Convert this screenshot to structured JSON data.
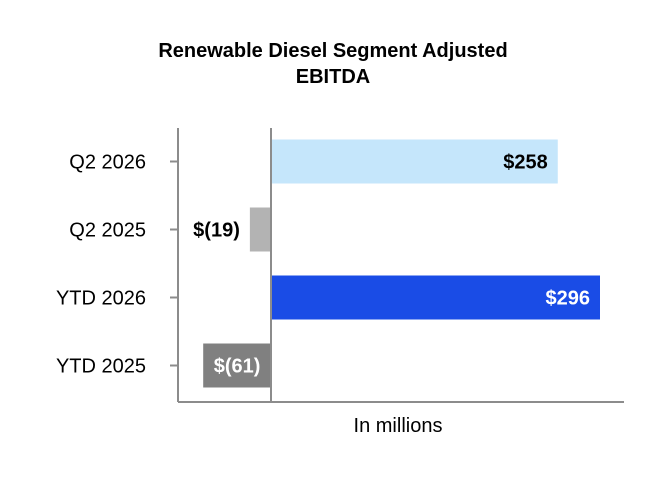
{
  "chart_data": {
    "type": "bar",
    "orientation": "horizontal",
    "title_lines": [
      "Renewable Diesel Segment Adjusted",
      "EBITDA"
    ],
    "xlabel": "In millions",
    "ylabel": "",
    "categories": [
      "Q2 2026",
      "Q2 2025",
      "YTD 2026",
      "YTD 2025"
    ],
    "values": [
      258,
      -19,
      296,
      -61
    ],
    "data_labels": [
      "$258",
      "$(19)",
      "$296",
      "$(61)"
    ],
    "bar_colors": [
      "#c5e6fb",
      "#b3b3b3",
      "#1a4ce6",
      "#808080"
    ],
    "label_colors": [
      "#000000",
      "#000000",
      "#ffffff",
      "#ffffff"
    ],
    "xlim": [
      -85,
      320
    ],
    "grid": false,
    "legend": "none"
  }
}
